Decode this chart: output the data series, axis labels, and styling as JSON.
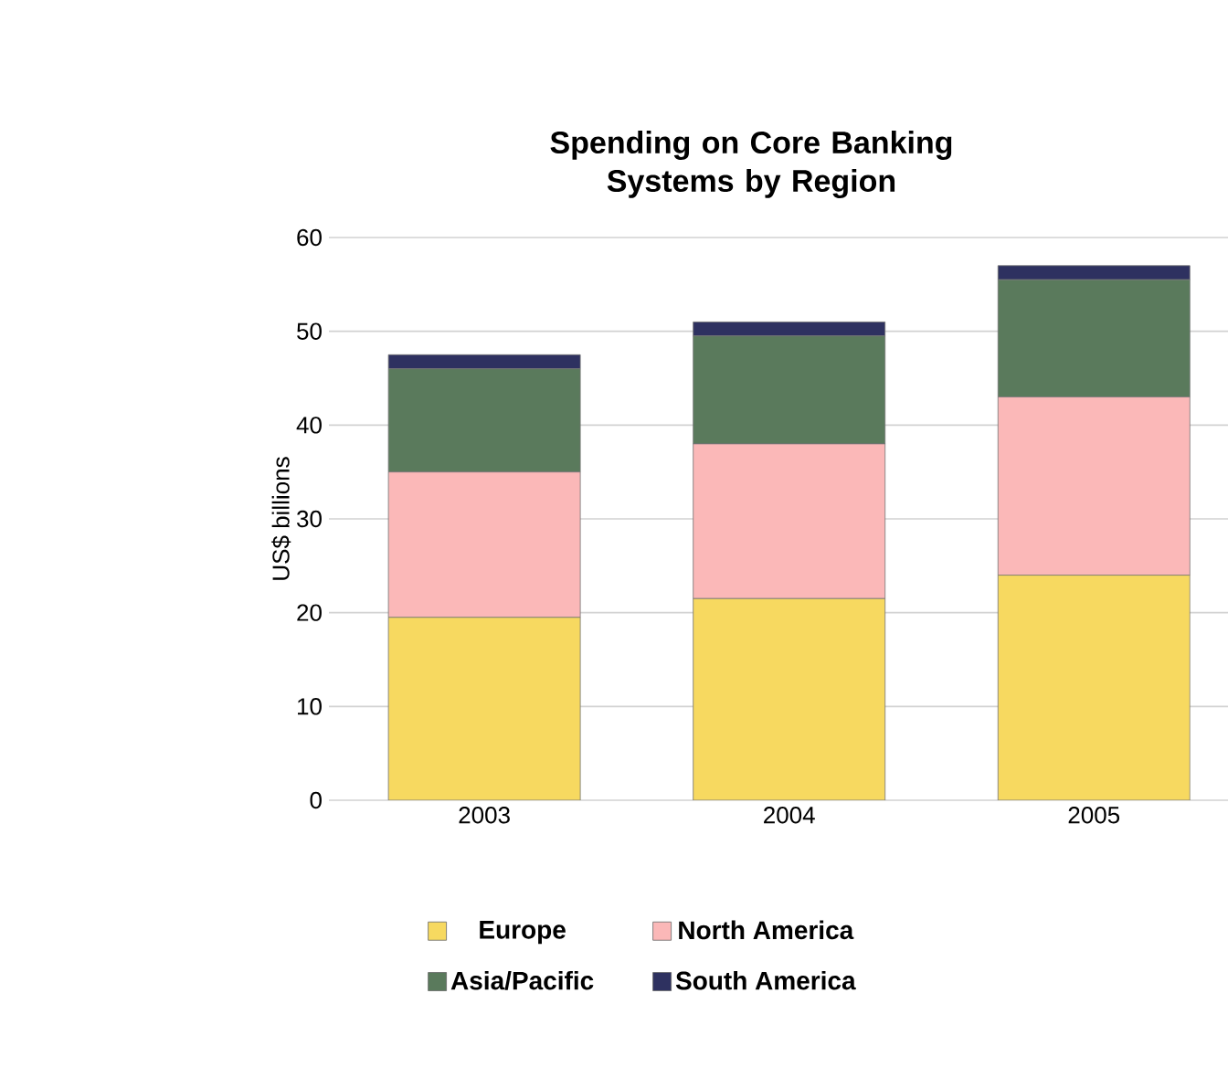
{
  "chart_data": {
    "type": "bar",
    "stacked": true,
    "title": "Spending on Core Banking Systems by Region",
    "ylabel": "US$ billions",
    "categories": [
      "2003",
      "2004",
      "2005"
    ],
    "series": [
      {
        "name": "Europe",
        "color": "#f7d960",
        "values": [
          19.5,
          21.5,
          24
        ]
      },
      {
        "name": "North America",
        "color": "#fbb8b8",
        "values": [
          15.5,
          16.5,
          19
        ]
      },
      {
        "name": "Asia/Pacific",
        "color": "#5a7a5c",
        "values": [
          11,
          11.5,
          12.5
        ]
      },
      {
        "name": "South America",
        "color": "#2e3160",
        "values": [
          1.5,
          1.5,
          1.5
        ]
      }
    ],
    "ylim": [
      0,
      60
    ],
    "yticks": [
      0,
      10,
      20,
      30,
      40,
      50,
      60
    ],
    "grid": "y",
    "legend": "bottom"
  }
}
